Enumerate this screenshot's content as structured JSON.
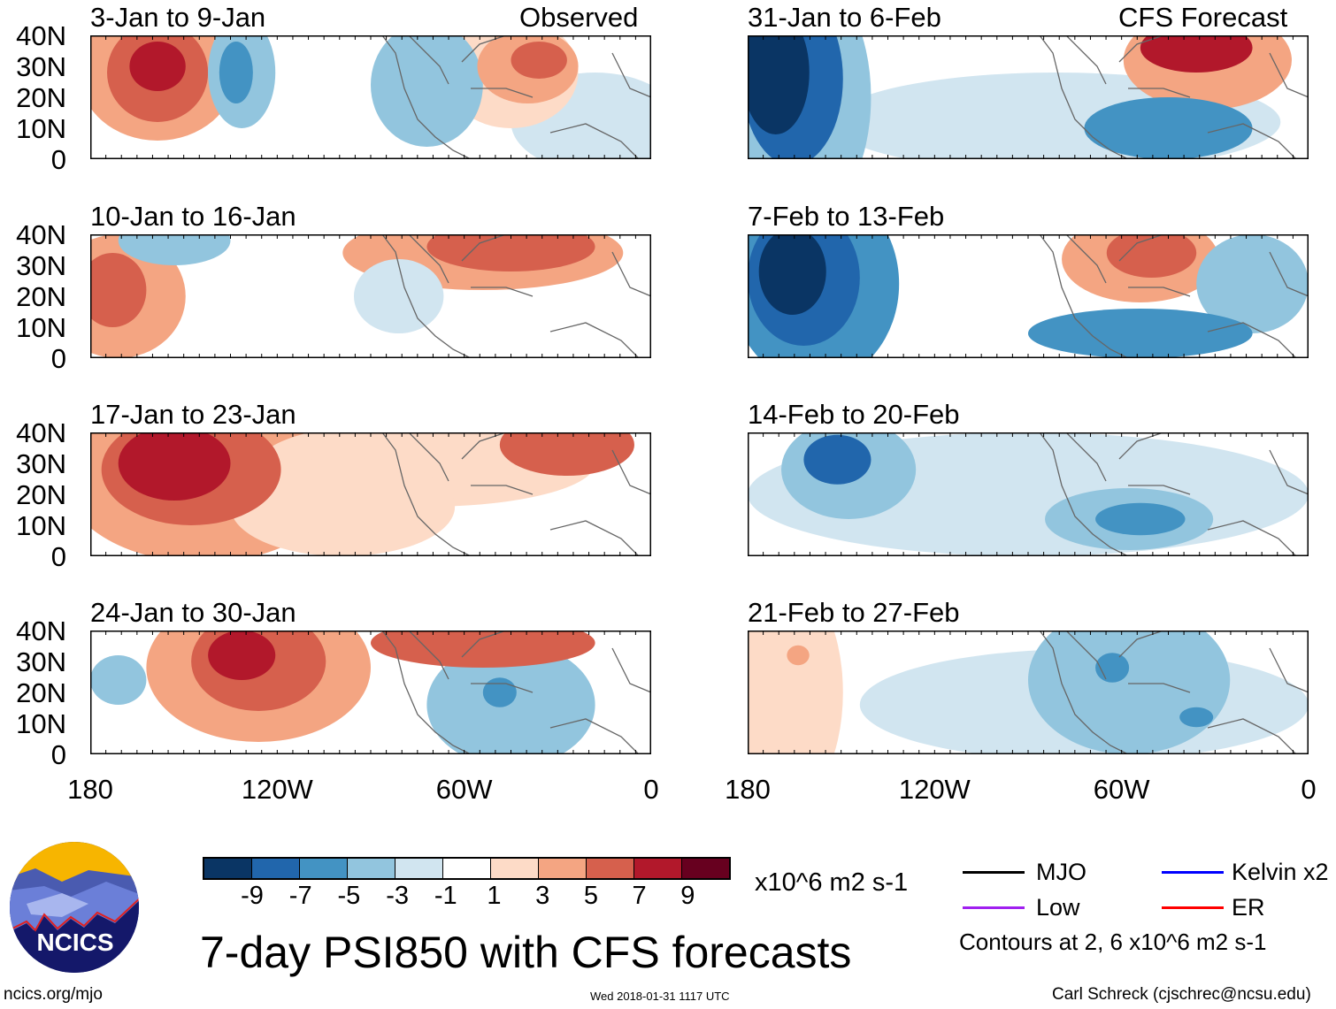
{
  "figure": {
    "title": "7-day PSI850 with CFS forecasts",
    "left_column_label": "Observed",
    "right_column_label": "CFS Forecast",
    "y_ticks": [
      "40N",
      "30N",
      "20N",
      "10N",
      "0"
    ],
    "x_ticks": [
      "180",
      "120W",
      "60W",
      "0"
    ],
    "panels": [
      {
        "label": "3-Jan to 9-Jan",
        "type": "observed"
      },
      {
        "label": "10-Jan to 16-Jan",
        "type": "observed"
      },
      {
        "label": "17-Jan to 23-Jan",
        "type": "observed"
      },
      {
        "label": "24-Jan to 30-Jan",
        "type": "observed"
      },
      {
        "label": "31-Jan to 6-Feb",
        "type": "forecast"
      },
      {
        "label": "7-Feb to 13-Feb",
        "type": "forecast"
      },
      {
        "label": "14-Feb to 20-Feb",
        "type": "forecast"
      },
      {
        "label": "21-Feb to 27-Feb",
        "type": "forecast"
      }
    ]
  },
  "colorbar": {
    "colors": [
      "#0a3564",
      "#2166ac",
      "#4393c3",
      "#92c5de",
      "#d1e5f0",
      "#ffffff",
      "#fddbc7",
      "#f4a582",
      "#d6604d",
      "#b2182b",
      "#67001f"
    ],
    "labels": [
      "-9",
      "-7",
      "-5",
      "-3",
      "-1",
      "1",
      "3",
      "5",
      "7",
      "9"
    ],
    "units": "x10^6 m2 s-1"
  },
  "legend": {
    "items": [
      {
        "label": "MJO",
        "color": "#000000"
      },
      {
        "label": "Kelvin x2",
        "color": "#0000ff"
      },
      {
        "label": "Low",
        "color": "#a020f0"
      },
      {
        "label": "ER",
        "color": "#ff0000"
      }
    ],
    "contours_note": "Contours at 2, 6 x10^6 m2 s-1"
  },
  "logo": {
    "text": "NCICS"
  },
  "footer": {
    "url": "ncics.org/mjo",
    "timestamp": "Wed 2018-01-31 1117 UTC",
    "credit": "Carl Schreck (cjschrec@ncsu.edu)"
  }
}
